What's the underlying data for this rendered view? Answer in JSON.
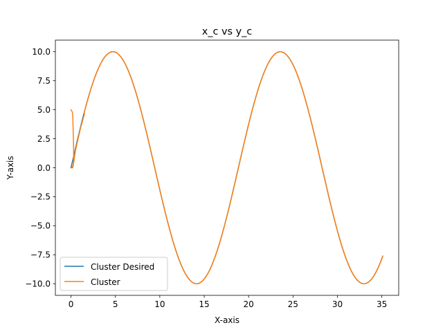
{
  "chart_data": {
    "type": "line",
    "title": "x_c vs y_c",
    "xlabel": "X-axis",
    "ylabel": "Y-axis",
    "xlim": [
      -1.76,
      36.9
    ],
    "ylim": [
      -11.0,
      11.0
    ],
    "xticks": [
      0,
      5,
      10,
      15,
      20,
      25,
      30,
      35
    ],
    "xtick_labels": [
      "0",
      "5",
      "10",
      "15",
      "20",
      "25",
      "30",
      "35"
    ],
    "yticks": [
      -10.0,
      -7.5,
      -5.0,
      -2.5,
      0.0,
      2.5,
      5.0,
      7.5,
      10.0
    ],
    "ytick_labels": [
      "−10.0",
      "−7.5",
      "−5.0",
      "−2.5",
      "0.0",
      "2.5",
      "5.0",
      "7.5",
      "10.0"
    ],
    "grid": false,
    "legend_position": "lower-left",
    "series": [
      {
        "name": "Cluster Desired",
        "color": "#1f77b4",
        "function": "y = 10*sin(x/3)",
        "x_range": [
          0,
          35.1
        ]
      },
      {
        "name": "Cluster",
        "color": "#ff7f0e",
        "initial_points": [
          [
            0.0,
            5.0
          ],
          [
            0.15,
            4.8
          ],
          [
            0.2,
            4.5
          ],
          [
            0.25,
            3.0
          ],
          [
            0.3,
            1.5
          ],
          [
            0.28,
            0.3
          ],
          [
            0.2,
            0.0
          ],
          [
            0.05,
            0.0
          ],
          [
            0.15,
            0.05
          ],
          [
            0.3,
            0.4
          ],
          [
            0.5,
            1.5
          ],
          [
            0.8,
            2.5
          ],
          [
            1.1,
            3.5
          ],
          [
            1.5,
            4.6
          ]
        ],
        "function": "y = 10*sin(x/3)",
        "x_range": [
          1.5,
          35.1
        ]
      }
    ]
  }
}
